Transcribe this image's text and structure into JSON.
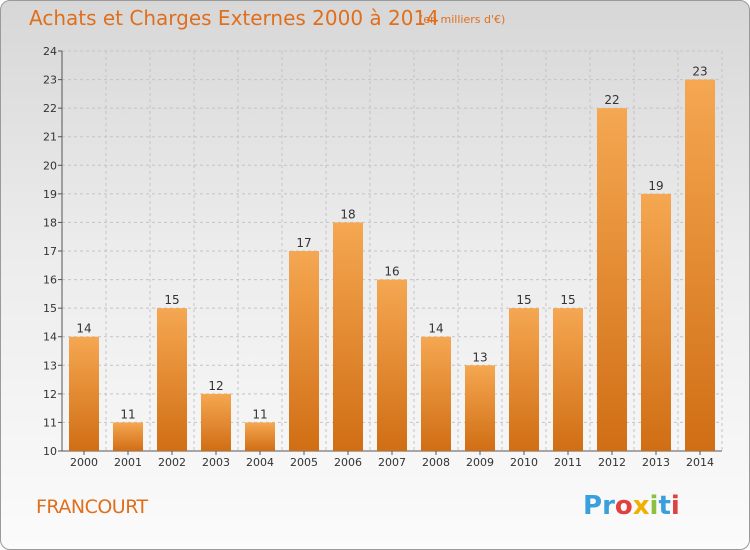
{
  "title": "Achats et Charges Externes 2000 à 2014",
  "subtitle": "(en milliers d'€)",
  "footer": {
    "location": "FRANCOURT",
    "brand": "Proxiti",
    "brand_letters": [
      "P",
      "r",
      "o",
      "x",
      "i",
      "t",
      "i"
    ],
    "brand_colors": [
      "#3aa0dc",
      "#3aa0dc",
      "#e04040",
      "#f0b000",
      "#8cc040",
      "#3aa0dc",
      "#e04040"
    ]
  },
  "colors": {
    "bar_light": "#f5a751",
    "bar_dark": "#d06e14",
    "text_accent": "#e06f1d"
  },
  "chart_data": {
    "type": "bar",
    "categories": [
      "2000",
      "2001",
      "2002",
      "2003",
      "2004",
      "2005",
      "2006",
      "2007",
      "2008",
      "2009",
      "2010",
      "2011",
      "2012",
      "2013",
      "2014"
    ],
    "values": [
      14,
      11,
      15,
      12,
      11,
      17,
      18,
      16,
      14,
      13,
      15,
      15,
      22,
      19,
      23
    ],
    "ylim": [
      10,
      24
    ],
    "yticks": [
      10,
      11,
      12,
      13,
      14,
      15,
      16,
      17,
      18,
      19,
      20,
      21,
      22,
      23,
      24
    ],
    "grid": true
  }
}
